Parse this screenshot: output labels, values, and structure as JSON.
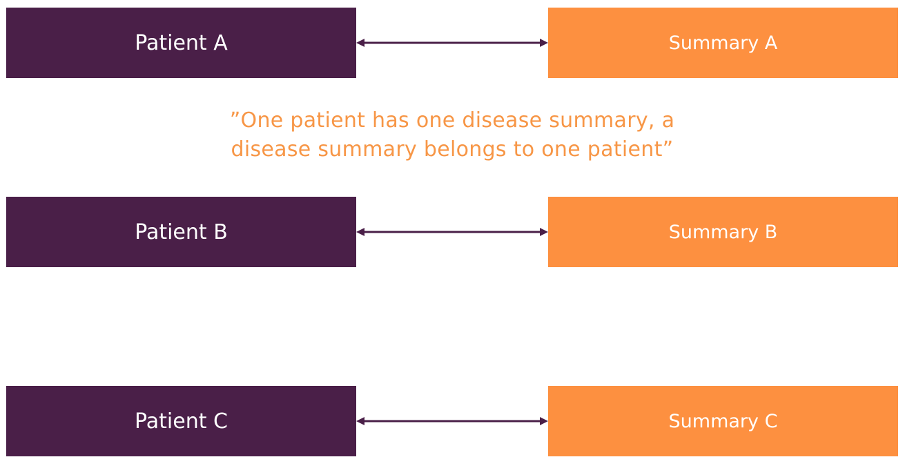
{
  "colors": {
    "patient_fill": "#4a1f48",
    "summary_fill": "#fd9040",
    "quote_text": "#f79646",
    "arrow": "#4a1f48"
  },
  "rows": [
    {
      "patient": "Patient A",
      "summary": "Summary A"
    },
    {
      "patient": "Patient B",
      "summary": "Summary B"
    },
    {
      "patient": "Patient C",
      "summary": "Summary C"
    }
  ],
  "quote": {
    "line1": "”One patient has one disease summary, a",
    "line2": "disease summary belongs to one patient”"
  }
}
